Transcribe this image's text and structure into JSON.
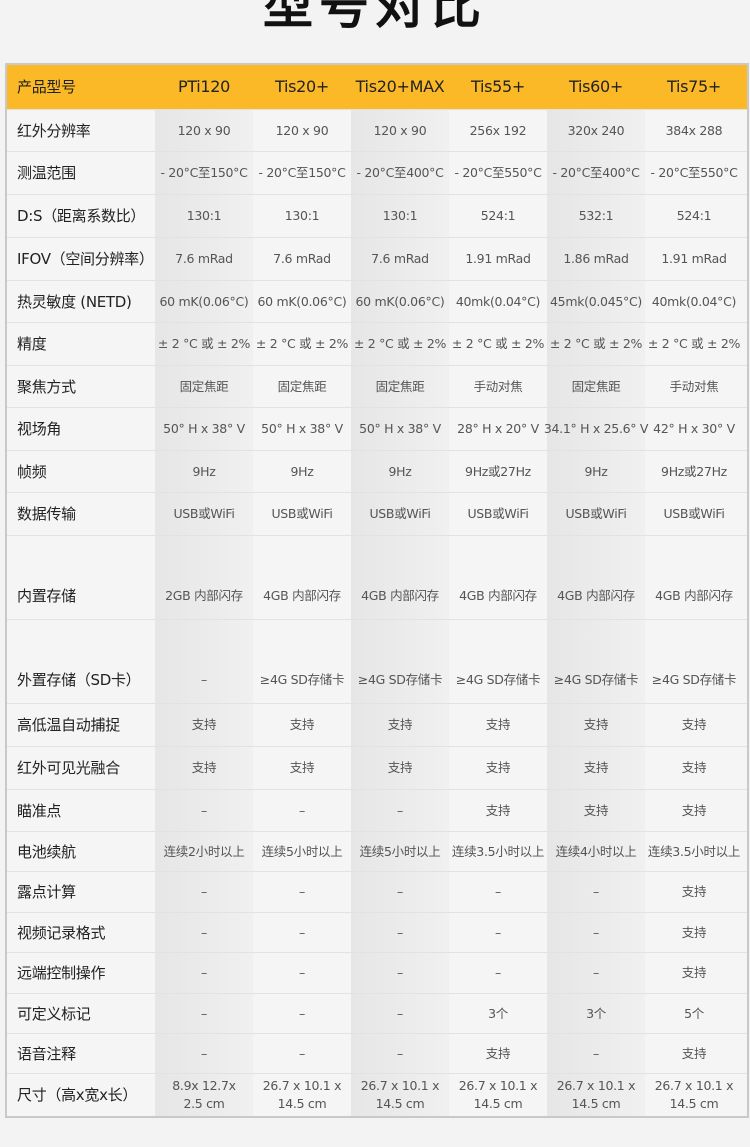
{
  "title": "型号对比",
  "colors": {
    "header_bg": "#fbb928",
    "page_bg": "#f4f3f3",
    "shaded_column": "#e8e8e8"
  },
  "table": {
    "header": [
      "产品型号",
      "PTi120",
      "Tis20+",
      "Tis20+MAX",
      "Tis55+",
      "Tis60+",
      "Tis75+"
    ],
    "rows": [
      {
        "label": "红外分辨率",
        "values": [
          "120 x 90",
          "120 x 90",
          "120 x 90",
          "256x 192",
          "320x 240",
          "384x 288"
        ]
      },
      {
        "label": "测温范围",
        "values": [
          "- 20°C至150°C",
          "- 20°C至150°C",
          "- 20°C至400°C",
          "- 20°C至550°C",
          "- 20°C至400°C",
          "- 20°C至550°C"
        ]
      },
      {
        "label": "D:S（距离系数比）",
        "values": [
          "130:1",
          "130:1",
          "130:1",
          "524:1",
          "532:1",
          "524:1"
        ]
      },
      {
        "label": "IFOV（空间分辨率）",
        "values": [
          "7.6 mRad",
          "7.6 mRad",
          "7.6 mRad",
          "1.91 mRad",
          "1.86 mRad",
          "1.91 mRad"
        ]
      },
      {
        "label": "热灵敏度 (NETD)",
        "values": [
          "60 mK(0.06°C)",
          "60 mK(0.06°C)",
          "60 mK(0.06°C)",
          "40mk(0.04°C)",
          "45mk(0.045°C)",
          "40mk(0.04°C)"
        ]
      },
      {
        "label": "精度",
        "values": [
          "± 2 °C 或 ± 2%",
          "± 2 °C 或 ± 2%",
          "± 2 °C 或 ± 2%",
          "± 2 °C 或 ± 2%",
          "± 2 °C 或 ± 2%",
          "± 2 °C 或 ± 2%"
        ]
      },
      {
        "label": "聚焦方式",
        "values": [
          "固定焦距",
          "固定焦距",
          "固定焦距",
          "手动对焦",
          "固定焦距",
          "手动对焦"
        ]
      },
      {
        "label": "视场角",
        "values": [
          "50° H x 38° V",
          "50° H x 38° V",
          "50° H x 38° V",
          "28° H x 20° V",
          "34.1° H x 25.6° V",
          "42° H x 30° V"
        ]
      },
      {
        "label": "帧频",
        "values": [
          "9Hz",
          "9Hz",
          "9Hz",
          "9Hz或27Hz",
          "9Hz",
          "9Hz或27Hz"
        ]
      },
      {
        "label": "数据传输",
        "values": [
          "USB或WiFi",
          "USB或WiFi",
          "USB或WiFi",
          "USB或WiFi",
          "USB或WiFi",
          "USB或WiFi"
        ]
      },
      {
        "label": "内置存储",
        "tall": true,
        "values": [
          "2GB 内部闪存",
          "4GB 内部闪存",
          "4GB 内部闪存",
          "4GB 内部闪存",
          "4GB 内部闪存",
          "4GB 内部闪存"
        ]
      },
      {
        "label": "外置存储（SD卡）",
        "tall": true,
        "values": [
          "–",
          "≥4G SD存储卡",
          "≥4G SD存储卡",
          "≥4G SD存储卡",
          "≥4G SD存储卡",
          "≥4G SD存储卡"
        ]
      },
      {
        "label": "高低温自动捕捉",
        "values": [
          "支持",
          "支持",
          "支持",
          "支持",
          "支持",
          "支持"
        ]
      },
      {
        "label": " 红外可见光融合",
        "values": [
          "支持",
          "支持",
          "支持",
          "支持",
          "支持",
          "支持"
        ]
      },
      {
        "label": "瞄准点",
        "values": [
          "–",
          "–",
          "–",
          "支持",
          "支持",
          "支持"
        ]
      },
      {
        "label": "电池续航",
        "values": [
          "连续2小时以上",
          "连续5小时以上",
          "连续5小时以上",
          "连续3.5小时以上",
          "连续4小时以上",
          "连续3.5小时以上"
        ]
      },
      {
        "label": "露点计算",
        "values": [
          "–",
          "–",
          "–",
          "–",
          "–",
          "支持"
        ]
      },
      {
        "label": "视频记录格式",
        "values": [
          "–",
          "–",
          "–",
          "–",
          "–",
          "支持"
        ]
      },
      {
        "label": "远端控制操作",
        "values": [
          "–",
          "–",
          "–",
          "–",
          "–",
          "支持"
        ]
      },
      {
        "label": "可定义标记",
        "values": [
          "–",
          "–",
          "–",
          "3个",
          "3个",
          "5个"
        ]
      },
      {
        "label": "语音注释",
        "values": [
          "–",
          "–",
          "–",
          "支持",
          "–",
          "支持"
        ]
      },
      {
        "label": "尺寸（高x宽x长）",
        "values": [
          "8.9x 12.7x\n2.5 cm",
          "26.7 x 10.1 x\n14.5 cm",
          "26.7 x 10.1 x\n14.5 cm",
          "26.7 x 10.1 x\n14.5 cm",
          "26.7 x 10.1 x\n14.5 cm",
          "26.7 x 10.1 x\n14.5 cm"
        ]
      }
    ]
  }
}
